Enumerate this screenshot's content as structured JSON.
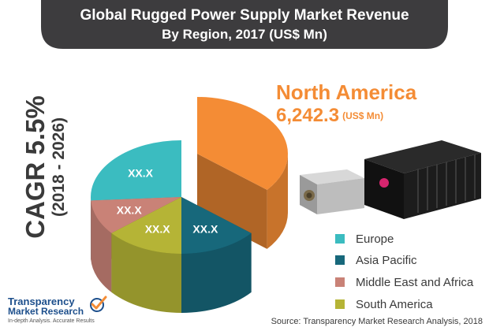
{
  "header": {
    "title": "Global Rugged Power Supply Market Revenue",
    "subtitle": "By Region, 2017 (US$ Mn)"
  },
  "cagr": {
    "text": "CAGR 5.5%",
    "period": "(2018 - 2026)"
  },
  "callout": {
    "region": "North America",
    "value": "6,242.3",
    "unit": "(US$ Mn)"
  },
  "chart_data": {
    "type": "pie",
    "title": "Global Rugged Power Supply Market Revenue",
    "subtitle": "By Region, 2017 (US$ Mn)",
    "legend_position": "bottom-right",
    "slices": [
      {
        "name": "North America",
        "value": 6242.3,
        "label": "6,242.3",
        "share": 0.36,
        "color": "#f48c35"
      },
      {
        "name": "Asia Pacific",
        "value": null,
        "label": "XX.X",
        "share": 0.14,
        "color": "#17687b"
      },
      {
        "name": "South America",
        "value": null,
        "label": "XX.X",
        "share": 0.14,
        "color": "#b5b436"
      },
      {
        "name": "Middle East and Africa",
        "value": null,
        "label": "XX.X",
        "share": 0.1,
        "color": "#c98277"
      },
      {
        "name": "Europe",
        "value": null,
        "label": "XX.X",
        "share": 0.26,
        "color": "#3bbcc0"
      }
    ]
  },
  "legend": [
    {
      "label": "Europe",
      "color": "#3bbcc0"
    },
    {
      "label": "Asia Pacific",
      "color": "#17687b"
    },
    {
      "label": "Middle East and Africa",
      "color": "#c98277"
    },
    {
      "label": "South America",
      "color": "#b5b436"
    }
  ],
  "colors": {
    "banner": "#3d3c3e",
    "accent": "#f48c35",
    "text": "#3a3a3a"
  },
  "logo": {
    "name_line1": "Transparency",
    "name_line2": "Market Research",
    "tagline": "In-depth Analysis. Accurate Results",
    "icon": "check-globe-icon"
  },
  "footer": {
    "source": "Source: Transparency Market Research Analysis, 2018"
  },
  "images": {
    "device": "rugged-power-supply-product-photo"
  }
}
